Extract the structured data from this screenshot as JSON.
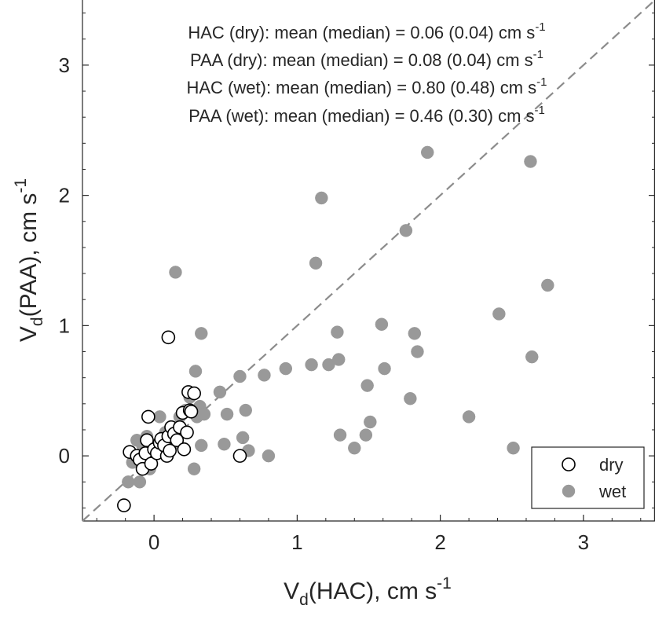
{
  "chart_data": {
    "type": "scatter",
    "title": "",
    "xlabel": {
      "main": "V",
      "sub": "d",
      "rest": "(HAC), cm s",
      "sup": "-1"
    },
    "ylabel": {
      "main": "V",
      "sub": "d",
      "rest": "(PAA), cm s",
      "sup": "-1"
    },
    "xlim": [
      -0.5,
      3.5
    ],
    "ylim": [
      -0.5,
      3.5
    ],
    "xticks": [
      {
        "value": 0,
        "label": "0"
      },
      {
        "value": 1,
        "label": "1"
      },
      {
        "value": 2,
        "label": "2"
      },
      {
        "value": 3,
        "label": "3"
      }
    ],
    "yticks": [
      {
        "value": 0,
        "label": "0"
      },
      {
        "value": 1,
        "label": "1"
      },
      {
        "value": 2,
        "label": "2"
      },
      {
        "value": 3,
        "label": "3"
      }
    ],
    "grid": false,
    "reference_line": {
      "style": "dashed",
      "slope": 1,
      "intercept": 0,
      "color": "#8c8c8c"
    },
    "annotations": [
      {
        "text": "HAC (dry): mean (median) = 0.06 (0.04) cm s",
        "sup": "-1"
      },
      {
        "text": "PAA (dry): mean (median) = 0.08 (0.04) cm s",
        "sup": "-1"
      },
      {
        "text": "HAC (wet): mean (median) = 0.80 (0.48) cm s",
        "sup": "-1"
      },
      {
        "text": "PAA (wet): mean (median) = 0.46 (0.30) cm s",
        "sup": "-1"
      }
    ],
    "legend": {
      "position": "bottom-right"
    },
    "series": [
      {
        "name": "wet",
        "marker": "filled-circle",
        "color": "#999999",
        "points": [
          [
            -0.18,
            -0.2
          ],
          [
            -0.1,
            -0.2
          ],
          [
            -0.12,
            0.12
          ],
          [
            -0.15,
            -0.05
          ],
          [
            -0.08,
            0.08
          ],
          [
            -0.05,
            0.15
          ],
          [
            -0.03,
            -0.1
          ],
          [
            0.02,
            0.02
          ],
          [
            0.04,
            0.3
          ],
          [
            0.08,
            0.18
          ],
          [
            0.12,
            0.22
          ],
          [
            0.15,
            0.1
          ],
          [
            0.18,
            0.3
          ],
          [
            0.22,
            0.35
          ],
          [
            0.25,
            0.45
          ],
          [
            0.28,
            -0.1
          ],
          [
            0.3,
            0.3
          ],
          [
            0.32,
            0.38
          ],
          [
            0.33,
            0.08
          ],
          [
            0.35,
            0.32
          ],
          [
            0.29,
            0.65
          ],
          [
            0.33,
            0.94
          ],
          [
            0.15,
            1.41
          ],
          [
            0.46,
            0.49
          ],
          [
            0.49,
            0.09
          ],
          [
            0.51,
            0.32
          ],
          [
            0.6,
            0.61
          ],
          [
            0.62,
            0.14
          ],
          [
            0.64,
            0.35
          ],
          [
            0.66,
            0.04
          ],
          [
            0.77,
            0.62
          ],
          [
            0.8,
            0.0
          ],
          [
            0.92,
            0.67
          ],
          [
            1.1,
            0.7
          ],
          [
            1.13,
            1.48
          ],
          [
            1.17,
            1.98
          ],
          [
            1.22,
            0.7
          ],
          [
            1.28,
            0.95
          ],
          [
            1.29,
            0.74
          ],
          [
            1.3,
            0.16
          ],
          [
            1.4,
            0.06
          ],
          [
            1.48,
            0.16
          ],
          [
            1.49,
            0.54
          ],
          [
            1.51,
            0.26
          ],
          [
            1.59,
            1.01
          ],
          [
            1.61,
            0.67
          ],
          [
            1.76,
            1.73
          ],
          [
            1.79,
            0.44
          ],
          [
            1.82,
            0.94
          ],
          [
            1.84,
            0.8
          ],
          [
            1.91,
            2.33
          ],
          [
            2.2,
            0.3
          ],
          [
            2.41,
            1.09
          ],
          [
            2.51,
            0.06
          ],
          [
            2.63,
            2.26
          ],
          [
            2.64,
            0.76
          ],
          [
            2.75,
            1.31
          ]
        ]
      },
      {
        "name": "dry",
        "marker": "open-circle",
        "color": "#000000",
        "points": [
          [
            -0.21,
            -0.38
          ],
          [
            -0.17,
            0.03
          ],
          [
            -0.12,
            0.0
          ],
          [
            -0.1,
            -0.03
          ],
          [
            -0.08,
            -0.1
          ],
          [
            -0.06,
            0.02
          ],
          [
            -0.05,
            0.12
          ],
          [
            -0.04,
            0.3
          ],
          [
            -0.02,
            -0.06
          ],
          [
            0.0,
            0.05
          ],
          [
            0.02,
            0.02
          ],
          [
            0.04,
            0.1
          ],
          [
            0.05,
            0.13
          ],
          [
            0.07,
            0.08
          ],
          [
            0.09,
            0.0
          ],
          [
            0.1,
            0.15
          ],
          [
            0.11,
            0.04
          ],
          [
            0.1,
            0.91
          ],
          [
            0.12,
            0.22
          ],
          [
            0.14,
            0.17
          ],
          [
            0.16,
            0.12
          ],
          [
            0.18,
            0.22
          ],
          [
            0.2,
            0.33
          ],
          [
            0.21,
            0.05
          ],
          [
            0.23,
            0.18
          ],
          [
            0.24,
            0.49
          ],
          [
            0.25,
            0.35
          ],
          [
            0.26,
            0.34
          ],
          [
            0.28,
            0.48
          ],
          [
            0.6,
            0.0
          ]
        ]
      }
    ]
  }
}
